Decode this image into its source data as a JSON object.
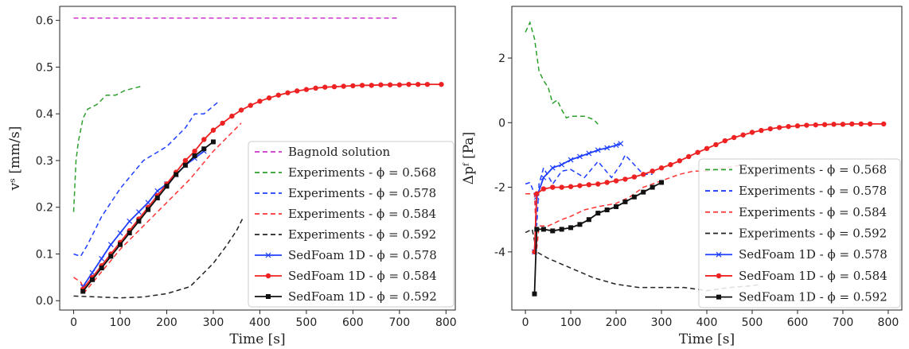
{
  "chart_data": [
    {
      "type": "line",
      "xlabel": "Time [s]",
      "ylabel": "vˢ [mm/s]",
      "xlim": [
        -30,
        820
      ],
      "ylim": [
        -0.02,
        0.63
      ],
      "xticks": [
        0,
        100,
        200,
        300,
        400,
        500,
        600,
        700,
        800
      ],
      "yticks": [
        0.0,
        0.1,
        0.2,
        0.3,
        0.4,
        0.5,
        0.6
      ],
      "legend_position": "lower-right",
      "series": [
        {
          "name": "Bagnold solution",
          "color": "#cc33cc",
          "style": "dashed",
          "marker": "none",
          "x": [
            0,
            700
          ],
          "y": [
            0.605,
            0.605
          ]
        },
        {
          "name": "Experiments - ϕ = 0.568",
          "color": "#2ca02c",
          "style": "dashed",
          "marker": "none",
          "x": [
            0,
            5,
            10,
            20,
            30,
            50,
            70,
            90,
            110,
            130,
            150
          ],
          "y": [
            0.19,
            0.3,
            0.34,
            0.39,
            0.41,
            0.42,
            0.44,
            0.44,
            0.45,
            0.455,
            0.46
          ]
        },
        {
          "name": "Experiments - ϕ = 0.578",
          "color": "#1f3fff",
          "style": "dashed",
          "marker": "none",
          "x": [
            0,
            15,
            30,
            60,
            100,
            150,
            200,
            240,
            260,
            280,
            310
          ],
          "y": [
            0.1,
            0.095,
            0.12,
            0.18,
            0.24,
            0.3,
            0.33,
            0.37,
            0.4,
            0.4,
            0.425
          ]
        },
        {
          "name": "Experiments - ϕ = 0.584",
          "color": "#ff3333",
          "style": "dashed",
          "marker": "none",
          "x": [
            0,
            15,
            25,
            50,
            100,
            150,
            200,
            250,
            300,
            350,
            360
          ],
          "y": [
            0.05,
            0.04,
            0.02,
            0.05,
            0.11,
            0.16,
            0.21,
            0.26,
            0.32,
            0.37,
            0.38
          ]
        },
        {
          "name": "Experiments - ϕ = 0.592",
          "color": "#222222",
          "style": "dashed",
          "marker": "none",
          "x": [
            0,
            50,
            100,
            150,
            200,
            250,
            280,
            300,
            330,
            350,
            365
          ],
          "y": [
            0.01,
            0.008,
            0.006,
            0.008,
            0.015,
            0.03,
            0.06,
            0.08,
            0.12,
            0.15,
            0.18
          ]
        },
        {
          "name": "SedFoam 1D - ϕ = 0.578",
          "color": "#1f3fff",
          "style": "solid",
          "marker": "x",
          "x": [
            20,
            40,
            60,
            80,
            100,
            120,
            140,
            160,
            180,
            200,
            220,
            240,
            260,
            280
          ],
          "y": [
            0.03,
            0.06,
            0.09,
            0.12,
            0.145,
            0.17,
            0.19,
            0.21,
            0.235,
            0.25,
            0.27,
            0.29,
            0.305,
            0.32
          ]
        },
        {
          "name": "SedFoam 1D - ϕ = 0.584",
          "color": "#ee2222",
          "style": "solid",
          "marker": "o",
          "x": [
            20,
            40,
            60,
            80,
            100,
            120,
            140,
            160,
            180,
            200,
            220,
            240,
            260,
            280,
            300,
            320,
            340,
            360,
            380,
            400,
            420,
            440,
            460,
            480,
            500,
            520,
            540,
            560,
            580,
            600,
            620,
            640,
            660,
            680,
            700,
            720,
            740,
            760,
            790
          ],
          "y": [
            0.025,
            0.05,
            0.075,
            0.1,
            0.125,
            0.15,
            0.175,
            0.2,
            0.225,
            0.25,
            0.275,
            0.3,
            0.32,
            0.345,
            0.365,
            0.38,
            0.395,
            0.408,
            0.418,
            0.427,
            0.434,
            0.44,
            0.445,
            0.449,
            0.452,
            0.455,
            0.457,
            0.458,
            0.459,
            0.46,
            0.461,
            0.461,
            0.462,
            0.462,
            0.462,
            0.463,
            0.463,
            0.463,
            0.463
          ]
        },
        {
          "name": "SedFoam 1D - ϕ = 0.592",
          "color": "#111111",
          "style": "solid",
          "marker": "s",
          "x": [
            20,
            40,
            60,
            80,
            100,
            120,
            140,
            160,
            180,
            200,
            220,
            240,
            260,
            280,
            300
          ],
          "y": [
            0.02,
            0.045,
            0.07,
            0.095,
            0.12,
            0.145,
            0.17,
            0.195,
            0.22,
            0.245,
            0.27,
            0.29,
            0.31,
            0.325,
            0.34
          ]
        }
      ]
    },
    {
      "type": "line",
      "xlabel": "Time [s]",
      "ylabel": "Δpᶠ [Pa]",
      "xlim": [
        -30,
        830
      ],
      "ylim": [
        -5.8,
        3.6
      ],
      "xticks": [
        0,
        100,
        200,
        300,
        400,
        500,
        600,
        700,
        800
      ],
      "yticks": [
        -4,
        -2,
        0,
        2
      ],
      "legend_position": "lower-right",
      "series": [
        {
          "name": "Experiments - ϕ = 0.568",
          "color": "#2ca02c",
          "style": "dashed",
          "marker": "none",
          "x": [
            0,
            10,
            20,
            30,
            40,
            50,
            60,
            70,
            80,
            90,
            100,
            110,
            130,
            150,
            160
          ],
          "y": [
            2.8,
            3.1,
            2.6,
            1.6,
            1.3,
            1.1,
            0.6,
            0.7,
            0.4,
            0.15,
            0.2,
            0.2,
            0.2,
            0.1,
            -0.05
          ]
        },
        {
          "name": "Experiments - ϕ = 0.578",
          "color": "#1f3fff",
          "style": "dashed",
          "marker": "none",
          "x": [
            0,
            10,
            20,
            25,
            30,
            40,
            60,
            80,
            100,
            130,
            160,
            190,
            210,
            220,
            240,
            260,
            280
          ],
          "y": [
            -1.9,
            -1.85,
            -2.2,
            -3.2,
            -1.9,
            -1.4,
            -1.9,
            -1.5,
            -1.45,
            -1.7,
            -1.2,
            -1.7,
            -1.3,
            -1.0,
            -1.3,
            -1.6,
            -1.6
          ]
        },
        {
          "name": "Experiments - ϕ = 0.584",
          "color": "#ff3333",
          "style": "dashed",
          "marker": "none",
          "x": [
            0,
            20,
            25,
            30,
            50,
            80,
            100,
            130,
            160,
            200,
            230,
            260,
            300,
            340,
            370,
            400,
            440,
            480
          ],
          "y": [
            -2.2,
            -2.2,
            -3.9,
            -3.2,
            -3.2,
            -3.0,
            -2.9,
            -2.7,
            -2.6,
            -2.5,
            -2.3,
            -2.0,
            -1.8,
            -1.6,
            -1.5,
            -1.5,
            -1.4,
            -1.3
          ]
        },
        {
          "name": "Experiments - ϕ = 0.592",
          "color": "#222222",
          "style": "dashed",
          "marker": "none",
          "x": [
            0,
            15,
            25,
            50,
            100,
            150,
            200,
            250,
            300,
            350,
            400,
            450,
            500,
            520
          ],
          "y": [
            -3.4,
            -3.3,
            -4.0,
            -4.2,
            -4.5,
            -4.8,
            -5.0,
            -5.1,
            -5.1,
            -5.1,
            -5.2,
            -5.1,
            -5.05,
            -5.0
          ]
        },
        {
          "name": "SedFoam 1D - ϕ = 0.578",
          "color": "#1f3fff",
          "style": "solid",
          "marker": "x",
          "x": [
            20,
            25,
            40,
            60,
            80,
            100,
            120,
            140,
            160,
            180,
            200,
            210
          ],
          "y": [
            -4.0,
            -2.3,
            -1.7,
            -1.4,
            -1.3,
            -1.15,
            -1.05,
            -0.95,
            -0.85,
            -0.78,
            -0.7,
            -0.65
          ]
        },
        {
          "name": "SedFoam 1D - ϕ = 0.584",
          "color": "#ee2222",
          "style": "solid",
          "marker": "o",
          "x": [
            20,
            25,
            40,
            60,
            80,
            100,
            120,
            140,
            160,
            180,
            200,
            220,
            240,
            260,
            280,
            300,
            320,
            340,
            360,
            380,
            400,
            420,
            440,
            460,
            480,
            500,
            520,
            540,
            560,
            580,
            600,
            620,
            640,
            660,
            680,
            700,
            720,
            740,
            760,
            790
          ],
          "y": [
            -4.0,
            -2.2,
            -2.05,
            -2.0,
            -2.0,
            -1.98,
            -1.95,
            -1.92,
            -1.9,
            -1.85,
            -1.8,
            -1.75,
            -1.68,
            -1.6,
            -1.5,
            -1.4,
            -1.3,
            -1.18,
            -1.05,
            -0.92,
            -0.8,
            -0.68,
            -0.56,
            -0.46,
            -0.38,
            -0.3,
            -0.24,
            -0.19,
            -0.15,
            -0.12,
            -0.1,
            -0.08,
            -0.07,
            -0.06,
            -0.05,
            -0.05,
            -0.04,
            -0.04,
            -0.04,
            -0.04
          ]
        },
        {
          "name": "SedFoam 1D - ϕ = 0.592",
          "color": "#111111",
          "style": "solid",
          "marker": "s",
          "x": [
            20,
            25,
            40,
            60,
            80,
            100,
            120,
            140,
            160,
            180,
            200,
            220,
            240,
            260,
            280,
            300
          ],
          "y": [
            -5.3,
            -3.3,
            -3.3,
            -3.35,
            -3.3,
            -3.25,
            -3.15,
            -3.0,
            -2.8,
            -2.7,
            -2.6,
            -2.45,
            -2.3,
            -2.15,
            -2.0,
            -1.85
          ]
        }
      ]
    }
  ]
}
